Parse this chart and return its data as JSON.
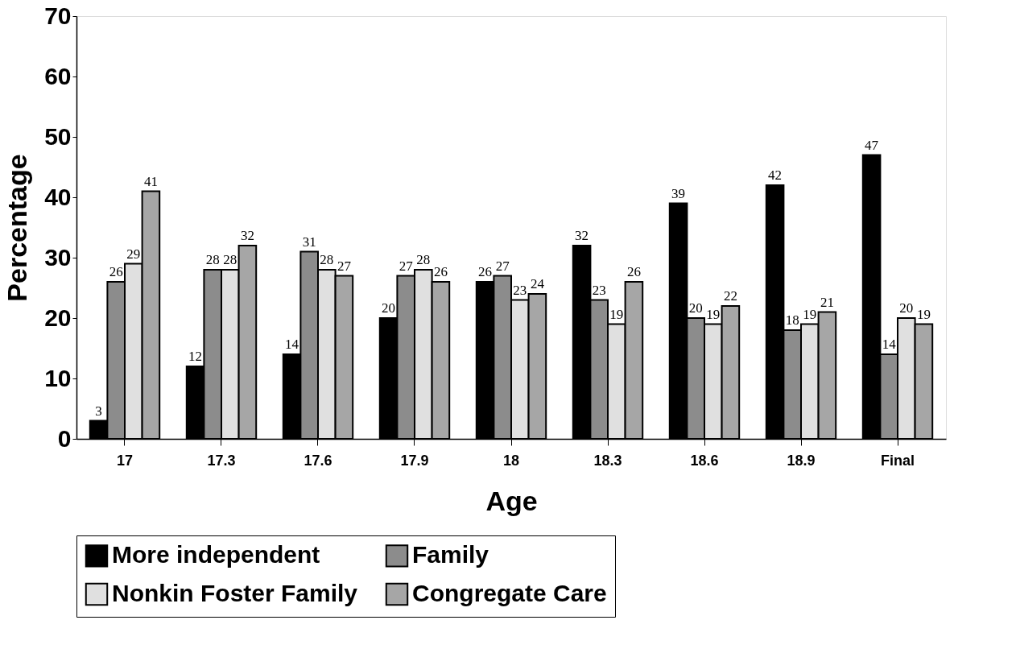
{
  "chart_data": {
    "type": "bar",
    "xlabel": "Age",
    "ylabel": "Percentage",
    "categories": [
      "17",
      "17.3",
      "17.6",
      "17.9",
      "18",
      "18.3",
      "18.6",
      "18.9",
      "Final"
    ],
    "series": [
      {
        "name": "More independent",
        "color": "#000000",
        "values": [
          3,
          12,
          14,
          20,
          26,
          32,
          39,
          42,
          47
        ]
      },
      {
        "name": "Family",
        "color": "#8c8c8c",
        "values": [
          26,
          28,
          31,
          27,
          27,
          23,
          20,
          18,
          14
        ]
      },
      {
        "name": "Nonkin Foster Family",
        "color": "#e0e0e0",
        "values": [
          29,
          28,
          28,
          28,
          23,
          19,
          19,
          19,
          20
        ]
      },
      {
        "name": "Congregate Care",
        "color": "#a6a6a6",
        "values": [
          41,
          32,
          27,
          26,
          24,
          26,
          22,
          21,
          19
        ]
      }
    ],
    "ylim": [
      0,
      70
    ],
    "yticks": [
      0,
      10,
      20,
      30,
      40,
      50,
      60,
      70
    ],
    "grid": false,
    "legend": "bottom",
    "data_labels": true
  }
}
